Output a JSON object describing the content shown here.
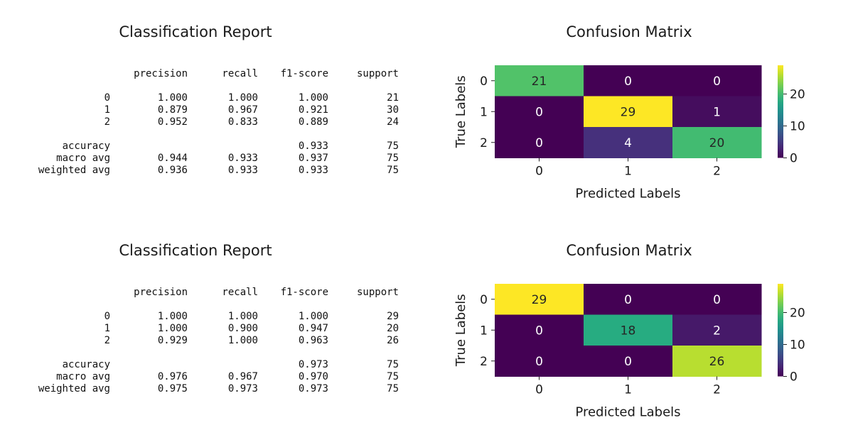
{
  "panels": [
    {
      "report": {
        "title": "Classification Report",
        "headers": [
          "precision",
          "recall",
          "f1-score",
          "support"
        ],
        "class_rows": [
          {
            "label": "0",
            "precision": "1.000",
            "recall": "1.000",
            "f1": "1.000",
            "support": "21"
          },
          {
            "label": "1",
            "precision": "0.879",
            "recall": "0.967",
            "f1": "0.921",
            "support": "30"
          },
          {
            "label": "2",
            "precision": "0.952",
            "recall": "0.833",
            "f1": "0.889",
            "support": "24"
          }
        ],
        "summary_rows": [
          {
            "label": "accuracy",
            "precision": "",
            "recall": "",
            "f1": "0.933",
            "support": "75"
          },
          {
            "label": "macro avg",
            "precision": "0.944",
            "recall": "0.933",
            "f1": "0.937",
            "support": "75"
          },
          {
            "label": "weighted avg",
            "precision": "0.936",
            "recall": "0.933",
            "f1": "0.933",
            "support": "75"
          }
        ]
      }
    },
    {
      "report": {
        "title": "Classification Report",
        "headers": [
          "precision",
          "recall",
          "f1-score",
          "support"
        ],
        "class_rows": [
          {
            "label": "0",
            "precision": "1.000",
            "recall": "1.000",
            "f1": "1.000",
            "support": "29"
          },
          {
            "label": "1",
            "precision": "1.000",
            "recall": "0.900",
            "f1": "0.947",
            "support": "20"
          },
          {
            "label": "2",
            "precision": "0.929",
            "recall": "1.000",
            "f1": "0.963",
            "support": "26"
          }
        ],
        "summary_rows": [
          {
            "label": "accuracy",
            "precision": "",
            "recall": "",
            "f1": "0.973",
            "support": "75"
          },
          {
            "label": "macro avg",
            "precision": "0.976",
            "recall": "0.967",
            "f1": "0.970",
            "support": "75"
          },
          {
            "label": "weighted avg",
            "precision": "0.975",
            "recall": "0.973",
            "f1": "0.973",
            "support": "75"
          }
        ]
      }
    }
  ],
  "chart_data": [
    {
      "type": "heatmap",
      "title": "Confusion Matrix",
      "xlabel": "Predicted Labels",
      "ylabel": "True Labels",
      "x_categories": [
        "0",
        "1",
        "2"
      ],
      "y_categories": [
        "0",
        "1",
        "2"
      ],
      "values": [
        [
          21,
          0,
          0
        ],
        [
          0,
          29,
          1
        ],
        [
          0,
          4,
          20
        ]
      ],
      "colormap": "viridis",
      "colorbar": {
        "min": 0,
        "max": 29,
        "ticks": [
          0,
          10,
          20
        ]
      }
    },
    {
      "type": "heatmap",
      "title": "Confusion Matrix",
      "xlabel": "Predicted Labels",
      "ylabel": "True Labels",
      "x_categories": [
        "0",
        "1",
        "2"
      ],
      "y_categories": [
        "0",
        "1",
        "2"
      ],
      "values": [
        [
          29,
          0,
          0
        ],
        [
          0,
          18,
          2
        ],
        [
          0,
          0,
          26
        ]
      ],
      "colormap": "viridis",
      "colorbar": {
        "min": 0,
        "max": 29,
        "ticks": [
          0,
          10,
          20
        ]
      }
    }
  ]
}
